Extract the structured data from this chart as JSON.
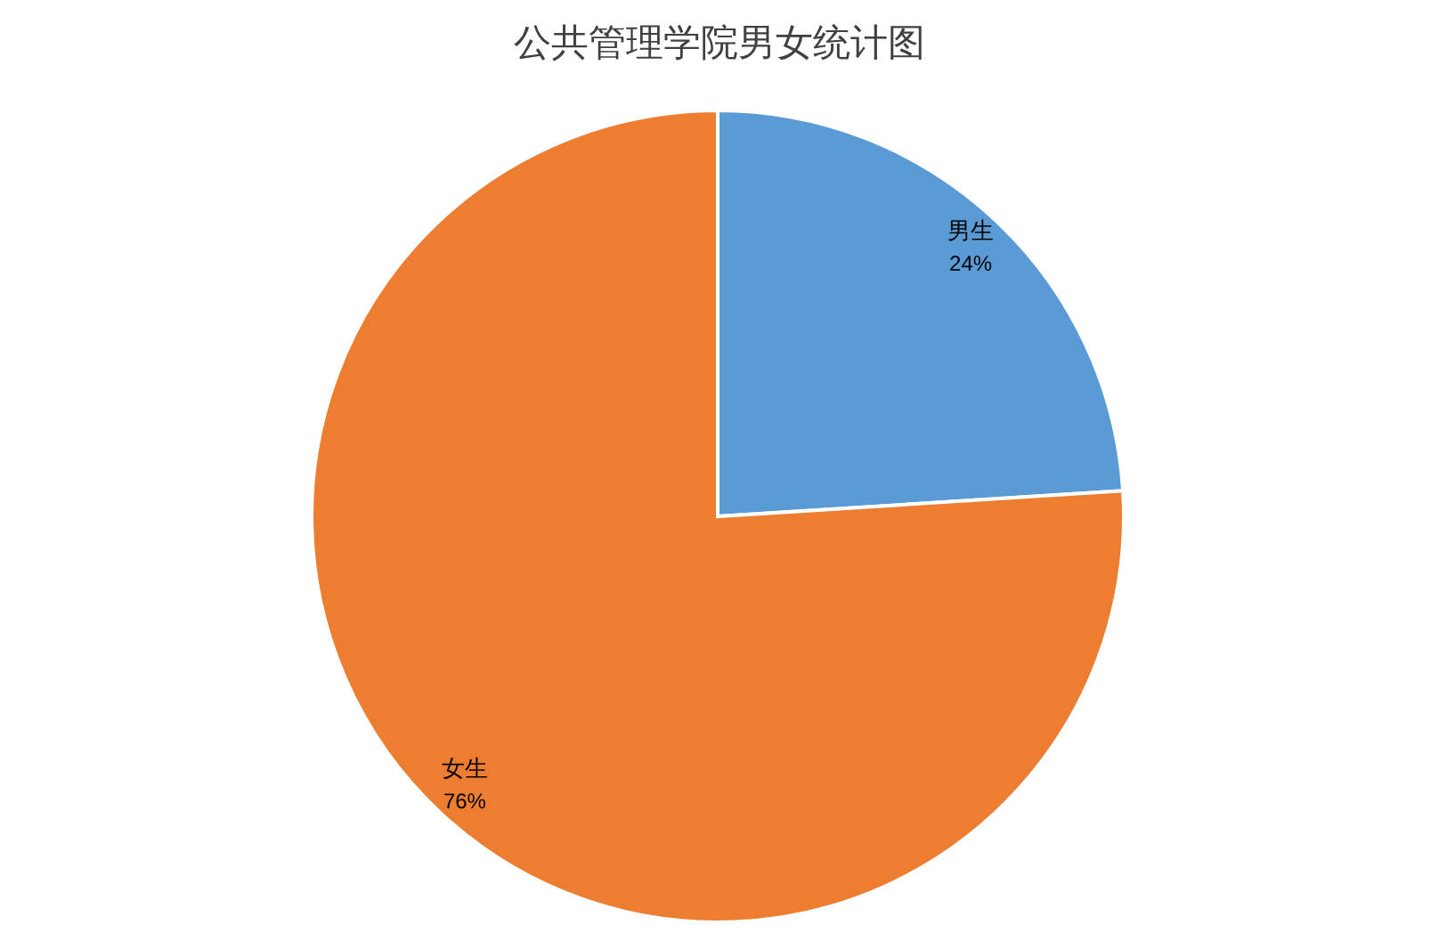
{
  "chart_data": {
    "type": "pie",
    "title": "公共管理学院男女统计图",
    "categories": [
      "男生",
      "女生"
    ],
    "values": [
      24,
      76
    ],
    "colors": [
      "#5b9bd5",
      "#ed7d31"
    ],
    "value_labels": [
      "24%",
      "76%"
    ]
  }
}
